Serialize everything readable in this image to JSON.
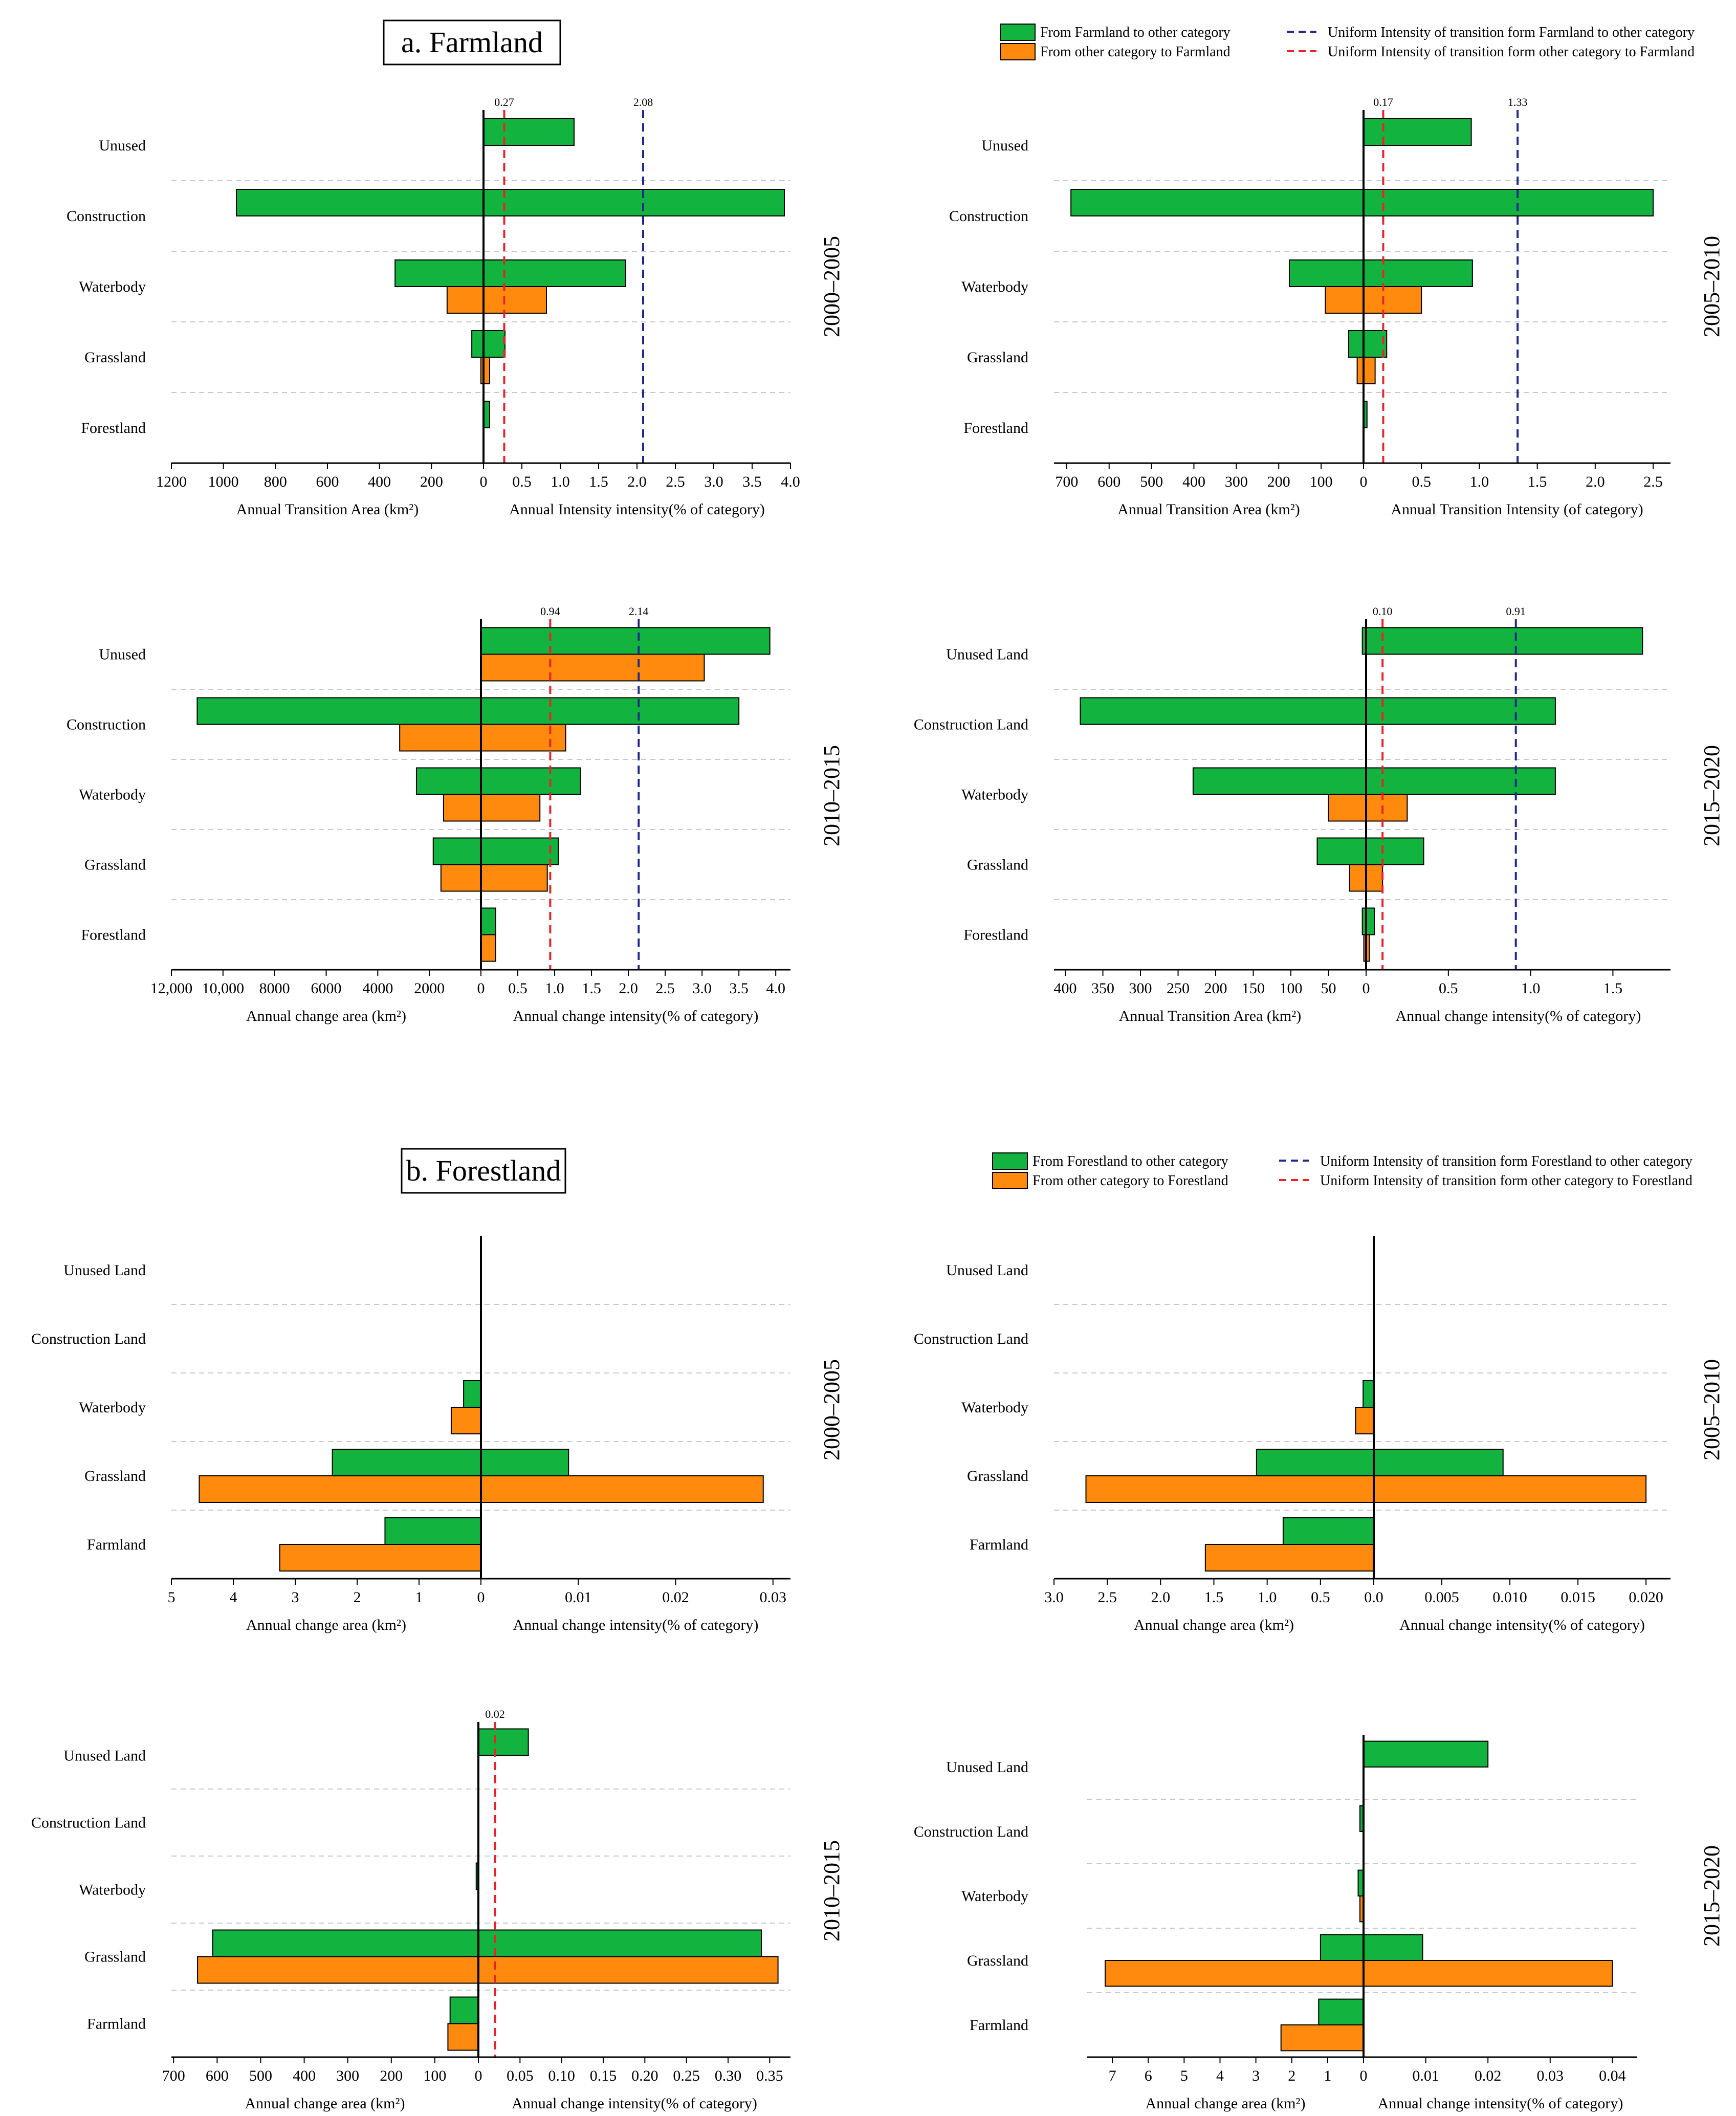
{
  "colors": {
    "green": "#12b33e",
    "orange": "#ff8a0d",
    "uniform_out": "#1f2a8a",
    "uniform_in": "#e8242a",
    "grid": "#c8c8c8",
    "edge": "#000000"
  },
  "sections": [
    {
      "title": "a. Farmland",
      "legend": [
        {
          "kind": "patch",
          "color": "green",
          "label": "From Farmland to other category"
        },
        {
          "kind": "patch",
          "color": "orange",
          "label": "From other category to Farmland"
        },
        {
          "kind": "dash",
          "color": "uniform_out",
          "label": "Uniform Intensity of transition form Farmland to other category"
        },
        {
          "kind": "dash",
          "color": "uniform_in",
          "label": "Uniform Intensity of transition form other category to Farmland"
        }
      ]
    },
    {
      "title": "b. Forestland",
      "legend": [
        {
          "kind": "patch",
          "color": "green",
          "label": "From Forestland to other category"
        },
        {
          "kind": "patch",
          "color": "orange",
          "label": "From other category to Forestland"
        },
        {
          "kind": "dash",
          "color": "uniform_out",
          "label": "Uniform Intensity of transition form Forestland to other category"
        },
        {
          "kind": "dash",
          "color": "uniform_in",
          "label": "Uniform Intensity of transition form other category to Forestland"
        }
      ]
    }
  ],
  "chart_data": [
    {
      "type": "bar",
      "panel": "a1",
      "period": "2000–2005",
      "categories": [
        "Unused",
        "Construction",
        "Waterbody",
        "Grassland",
        "Forestland"
      ],
      "xlabel_left": "Annual Transition Area (km²)",
      "xlabel_right": "Annual Intensity intensity(% of category)",
      "left_ticks": [
        "1200",
        "1000",
        "800",
        "600",
        "400",
        "200",
        "0"
      ],
      "left_max": 1200,
      "right_ticks": [
        "0",
        "0.5",
        "1.0",
        "1.5",
        "2.0",
        "2.5",
        "3.0",
        "3.5",
        "4.0"
      ],
      "right_max": 4.0,
      "area_out": [
        0,
        950,
        340,
        45,
        0
      ],
      "area_in": [
        0,
        0,
        140,
        10,
        0
      ],
      "intensity_out": [
        1.18,
        3.92,
        1.85,
        0.28,
        0.08
      ],
      "intensity_in": [
        0,
        0,
        0.82,
        0.08,
        0
      ],
      "uniform_out": 2.08,
      "uniform_in": 0.27,
      "uniform_out_label": "2.08",
      "uniform_in_label": "0.27"
    },
    {
      "type": "bar",
      "panel": "a2",
      "period": "2005–2010",
      "categories": [
        "Unused",
        "Construction",
        "Waterbody",
        "Grassland",
        "Forestland"
      ],
      "xlabel_left": "Annual Transition Area (km²)",
      "xlabel_right": "Annual Transition Intensity (of category)",
      "left_ticks": [
        "700",
        "600",
        "500",
        "400",
        "300",
        "200",
        "100",
        "0"
      ],
      "left_max": 730,
      "right_ticks": [
        "0",
        "0.5",
        "1.0",
        "1.5",
        "2.0",
        "2.5"
      ],
      "right_max": 2.65,
      "area_out": [
        0,
        690,
        175,
        35,
        0
      ],
      "area_in": [
        0,
        0,
        90,
        15,
        0
      ],
      "intensity_out": [
        0.93,
        2.5,
        0.94,
        0.2,
        0.03
      ],
      "intensity_in": [
        0,
        0,
        0.5,
        0.1,
        0
      ],
      "uniform_out": 1.33,
      "uniform_in": 0.17,
      "uniform_out_label": "1.33",
      "uniform_in_label": "0.17"
    },
    {
      "type": "bar",
      "panel": "a3",
      "period": "2010–2015",
      "categories": [
        "Unused",
        "Construction",
        "Waterbody",
        "Grassland",
        "Forestland"
      ],
      "xlabel_left": "Annual change area (km²)",
      "xlabel_right": "Annual change intensity(% of category)",
      "left_ticks": [
        "12,000",
        "10,000",
        "8000",
        "6000",
        "4000",
        "2000",
        "0"
      ],
      "left_max": 12000,
      "right_ticks": [
        "0",
        "0.5",
        "1.0",
        "1.5",
        "2.0",
        "2.5",
        "3.0",
        "3.5",
        "4.0"
      ],
      "right_max": 4.2,
      "area_out": [
        0,
        11000,
        2500,
        1850,
        0
      ],
      "area_in": [
        0,
        3150,
        1450,
        1550,
        0
      ],
      "intensity_out": [
        3.92,
        3.5,
        1.35,
        1.05,
        0.2
      ],
      "intensity_in": [
        3.03,
        1.15,
        0.8,
        0.9,
        0.2
      ],
      "uniform_out": 2.14,
      "uniform_in": 0.94,
      "uniform_out_label": "2.14",
      "uniform_in_label": "0.94"
    },
    {
      "type": "bar",
      "panel": "a4",
      "period": "2015–2020",
      "categories": [
        "Unused Land",
        "Construction Land",
        "Waterbody",
        "Grassland",
        "Forestland"
      ],
      "xlabel_left": "Annual Transition Area (km²)",
      "xlabel_right": "Annual change intensity(% of category)",
      "left_ticks": [
        "400",
        "350",
        "300",
        "250",
        "200",
        "150",
        "100",
        "50",
        "0"
      ],
      "left_max": 415,
      "right_ticks": [
        "0",
        "0.5",
        "1.0",
        "1.5"
      ],
      "right_max": 1.85,
      "area_out": [
        5,
        380,
        230,
        65,
        5
      ],
      "area_in": [
        0,
        0,
        50,
        22,
        3
      ],
      "intensity_out": [
        1.68,
        1.15,
        1.15,
        0.35,
        0.05
      ],
      "intensity_in": [
        0,
        0,
        0.25,
        0.1,
        0.02
      ],
      "uniform_out": 0.91,
      "uniform_in": 0.1,
      "uniform_out_label": "0.91",
      "uniform_in_label": "0.10"
    },
    {
      "type": "bar",
      "panel": "b1",
      "period": "2000–2005",
      "categories": [
        "Unused Land",
        "Construction Land",
        "Waterbody",
        "Grassland",
        "Farmland"
      ],
      "xlabel_left": "Annual change area (km²)",
      "xlabel_right": "Annual change intensity(% of category)",
      "left_ticks": [
        "5",
        "4",
        "3",
        "2",
        "1",
        "0"
      ],
      "left_max": 5,
      "right_ticks": [
        "0",
        "0.01",
        "0.02",
        "0.03"
      ],
      "right_max": 0.0318,
      "area_out": [
        0,
        0,
        0.28,
        2.4,
        1.55
      ],
      "area_in": [
        0,
        0,
        0.48,
        4.55,
        3.25
      ],
      "intensity_out": [
        0,
        0,
        0,
        0.009,
        0
      ],
      "intensity_in": [
        0,
        0,
        0,
        0.029,
        0
      ],
      "uniform_out": null,
      "uniform_in": null
    },
    {
      "type": "bar",
      "panel": "b2",
      "period": "2005–2010",
      "categories": [
        "Unused Land",
        "Construction Land",
        "Waterbody",
        "Grassland",
        "Farmland"
      ],
      "xlabel_left": "Annual change area (km²)",
      "xlabel_right": "Annual change intensity(% of category)",
      "left_ticks": [
        "3.0",
        "2.5",
        "2.0",
        "1.5",
        "1.0",
        "0.5",
        "0.0"
      ],
      "left_max": 3.0,
      "right_ticks": [
        "0.005",
        "0.010",
        "0.015",
        "0.020"
      ],
      "right_min_tick": 0.005,
      "right_max": 0.0218,
      "area_out": [
        0,
        0,
        0.1,
        1.1,
        0.85
      ],
      "area_in": [
        0,
        0,
        0.17,
        2.7,
        1.58
      ],
      "intensity_out": [
        0,
        0,
        0,
        0.0095,
        0
      ],
      "intensity_in": [
        0,
        0,
        0,
        0.02,
        0
      ],
      "uniform_out": null,
      "uniform_in": null
    },
    {
      "type": "bar",
      "panel": "b3",
      "period": "2010–2015",
      "categories": [
        "Unused Land",
        "Construction Land",
        "Waterbody",
        "Grassland",
        "Farmland"
      ],
      "xlabel_left": "Annual change area (km²)",
      "xlabel_right": "Annual change intensity(% of category)",
      "left_ticks": [
        "700",
        "600",
        "500",
        "400",
        "300",
        "200",
        "100",
        "0"
      ],
      "left_max": 705,
      "right_ticks": [
        "0.05",
        "0.10",
        "0.15",
        "0.20",
        "0.25",
        "0.30",
        "0.35"
      ],
      "right_min_tick": 0.05,
      "right_max": 0.375,
      "area_out": [
        0,
        0,
        5,
        610,
        65
      ],
      "area_in": [
        0,
        0,
        0,
        645,
        70
      ],
      "intensity_out": [
        0.06,
        0,
        0,
        0.34,
        0
      ],
      "intensity_in": [
        0,
        0,
        0,
        0.36,
        0
      ],
      "uniform_out": null,
      "uniform_in": 0.02,
      "uniform_in_label": "0.02"
    },
    {
      "type": "bar",
      "panel": "b4",
      "period": "2015–2020",
      "categories": [
        "Unused Land",
        "Construction Land",
        "Waterbody",
        "Grassland",
        "Farmland"
      ],
      "xlabel_left": "Annual change area (km²)",
      "xlabel_right": "Annual change intensity(% of category)",
      "left_ticks": [
        "7",
        "6",
        "5",
        "4",
        "3",
        "2",
        "1",
        "0"
      ],
      "left_max": 7.7,
      "right_ticks": [
        "0",
        "0.01",
        "0.02",
        "0.03",
        "0.04"
      ],
      "right_max": 0.044,
      "area_out": [
        0,
        0.1,
        0.15,
        1.2,
        1.25
      ],
      "area_in": [
        0,
        0,
        0.1,
        7.2,
        2.3
      ],
      "intensity_out": [
        0.02,
        0,
        0,
        0.0095,
        0
      ],
      "intensity_in": [
        0,
        0,
        0,
        0.04,
        0
      ],
      "uniform_out": null,
      "uniform_in": null
    }
  ]
}
